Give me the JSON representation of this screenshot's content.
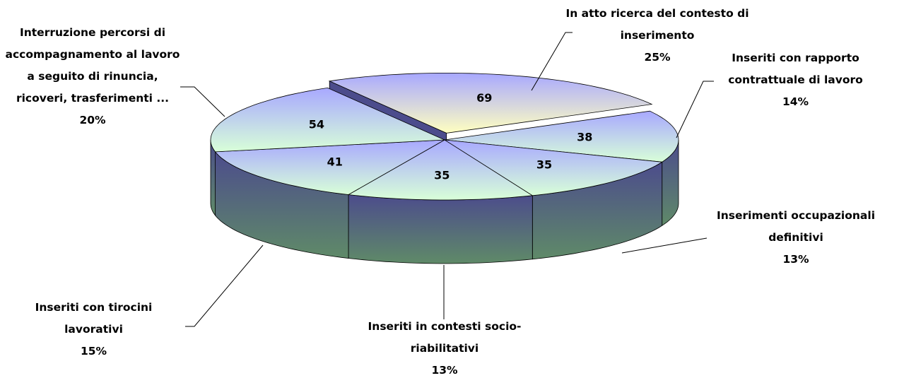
{
  "chart_data": {
    "type": "pie",
    "categories": [
      "In atto ricerca del contesto di inserimento",
      "Inseriti con rapporto contrattuale di lavoro",
      "Inserimenti occupazionali definitivi",
      "Inseriti in contesti socio-riabilitativi",
      "Inseriti con tirocini lavorativi",
      "Interruzione percorsi di accompagnamento al lavoro a seguito di rinuncia, ricoveri, trasferimenti ..."
    ],
    "values": [
      69,
      38,
      35,
      35,
      41,
      54
    ],
    "percent_labels": [
      "25%",
      "14%",
      "13%",
      "13%",
      "15%",
      "20%"
    ]
  }
}
